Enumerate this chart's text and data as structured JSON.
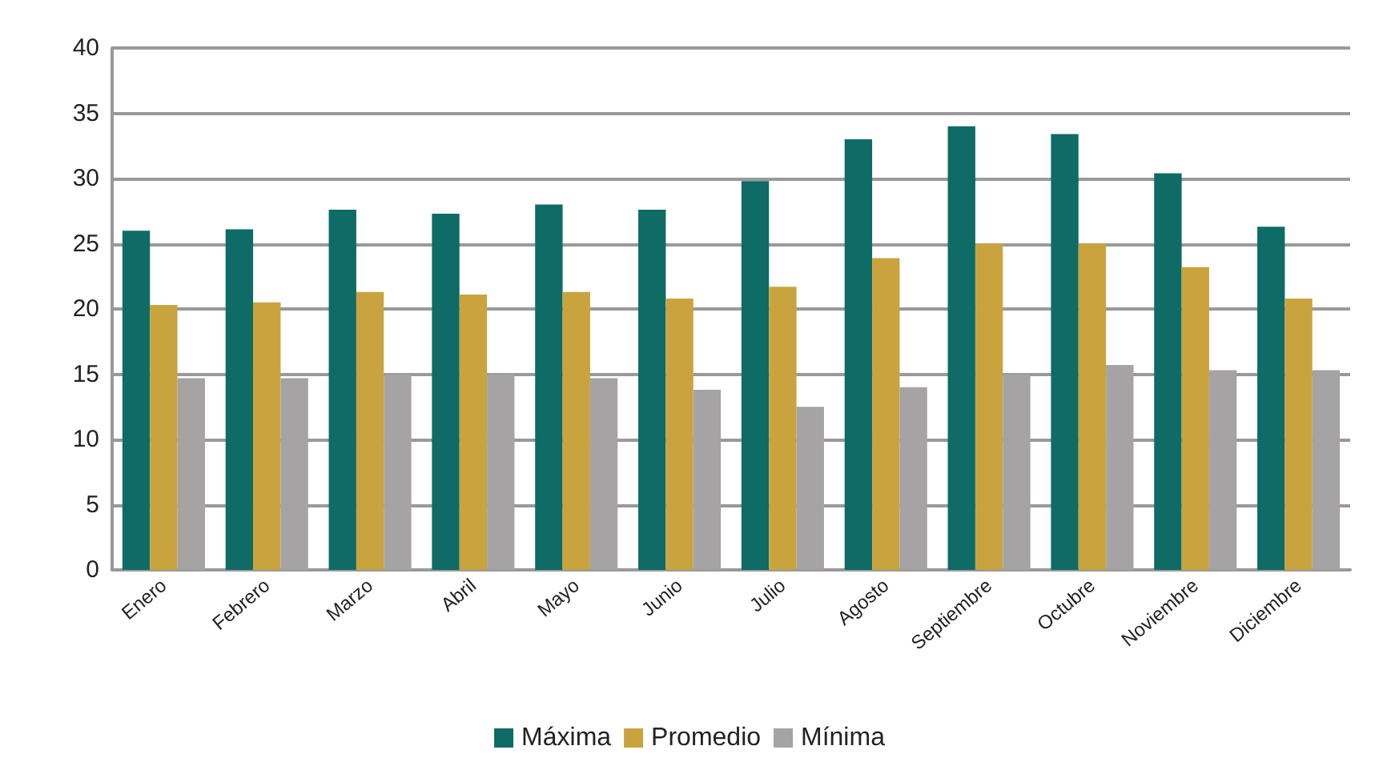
{
  "chart_data": {
    "type": "bar",
    "categories": [
      "Enero",
      "Febrero",
      "Marzo",
      "Abril",
      "Mayo",
      "Junio",
      "Julio",
      "Agosto",
      "Septiembre",
      "Octubre",
      "Noviembre",
      "Diciembre"
    ],
    "series": [
      {
        "name": "Máxima",
        "color": "#0e6b66",
        "values": [
          26.0,
          26.1,
          27.6,
          27.3,
          28.0,
          27.6,
          29.8,
          33.0,
          34.0,
          33.4,
          30.4,
          26.3
        ]
      },
      {
        "name": "Promedio",
        "color": "#c9a43e",
        "values": [
          20.3,
          20.5,
          21.3,
          21.1,
          21.3,
          20.8,
          21.7,
          23.9,
          25.0,
          25.0,
          23.2,
          20.8
        ]
      },
      {
        "name": "Mínima",
        "color": "#a5a3a4",
        "values": [
          14.7,
          14.7,
          15.0,
          15.0,
          14.7,
          13.8,
          12.5,
          14.0,
          15.0,
          15.7,
          15.3,
          15.3
        ]
      }
    ],
    "ylim": [
      0,
      40
    ],
    "yticks": [
      0,
      5,
      10,
      15,
      20,
      25,
      30,
      35,
      40
    ],
    "grid": "y",
    "legend": "bottom"
  }
}
